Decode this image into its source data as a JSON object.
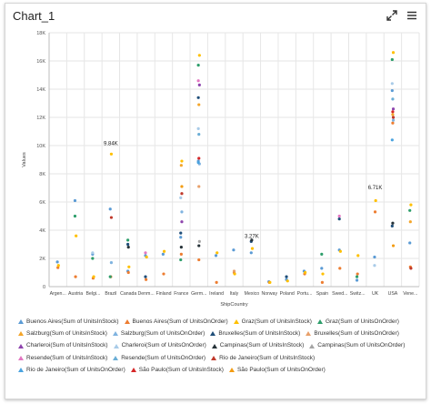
{
  "window": {
    "title": "Chart_1"
  },
  "toolbar": {
    "expand_icon": "expand-icon",
    "menu_icon": "hamburger-menu-icon"
  },
  "chart_data": {
    "type": "scatter",
    "xlabel": "ShipCountry",
    "ylabel": "Values",
    "ylim": [
      0,
      18000
    ],
    "y_ticks": [
      "0",
      "2K",
      "4K",
      "6K",
      "8K",
      "10K",
      "12K",
      "14K",
      "16K",
      "18K"
    ],
    "categories": [
      "Argen...",
      "Austria",
      "Belgi...",
      "Brazil",
      "Canada",
      "Denm...",
      "Finland",
      "France",
      "Germ...",
      "Ireland",
      "Italy",
      "Mexico",
      "Norway",
      "Poland",
      "Portu...",
      "Spain",
      "Swed...",
      "Switz...",
      "UK",
      "USA",
      "Vene..."
    ],
    "data_labels": [
      {
        "category": "Brazil",
        "value": 9840,
        "text": "9.84K"
      },
      {
        "category": "Mexico",
        "value": 3270,
        "text": "3.27K"
      },
      {
        "category": "UK",
        "value": 6710,
        "text": "6.71K"
      }
    ],
    "grid": true,
    "legend_position": "bottom",
    "series": [
      {
        "name": "Buenos Aires(Sum of UnitsInStock)",
        "color": "#5b9bd5",
        "values": [
          1750,
          6100,
          2300,
          5500,
          1100,
          2200,
          2300,
          3500,
          8900,
          2200,
          2600,
          2400,
          350,
          500,
          1100,
          1300,
          2600,
          450,
          2100,
          13900,
          3100
        ]
      },
      {
        "name": "Buenos Aires(Sum of UnitsOnOrder)",
        "color": "#ed7d31",
        "values": [
          1350,
          700,
          600,
          700,
          1000,
          500,
          900,
          2300,
          1900,
          300,
          1000,
          0,
          300,
          0,
          900,
          300,
          1300,
          900,
          5300,
          11600,
          1400
        ]
      },
      {
        "name": "Graz(Sum of UnitsInStock)",
        "color": "#ffc000",
        "values": [
          1500,
          3600,
          700,
          9400,
          1400,
          2100,
          2500,
          8900,
          16400,
          2400,
          900,
          2700,
          300,
          400,
          1000,
          900,
          2500,
          2200,
          6100,
          16600,
          5800
        ]
      },
      {
        "name": "Graz(Sum of UnitsOnOrder)",
        "color": "#2e9e6b",
        "values": [
          0,
          5000,
          2000,
          700,
          3300,
          0,
          0,
          1900,
          15700,
          0,
          0,
          0,
          0,
          0,
          0,
          2300,
          0,
          700,
          0,
          16100,
          5400
        ]
      },
      {
        "name": "Salzburg(Sum of UnitsInStock)",
        "color": "#f4a52a",
        "values": [
          0,
          0,
          0,
          0,
          0,
          0,
          0,
          8600,
          12900,
          0,
          0,
          0,
          0,
          0,
          0,
          0,
          0,
          0,
          0,
          12200,
          4600
        ]
      },
      {
        "name": "Salzburg(Sum of UnitsOnOrder)",
        "color": "#7fb3e0",
        "values": [
          0,
          0,
          0,
          1700,
          0,
          0,
          0,
          5300,
          8700,
          0,
          0,
          0,
          0,
          0,
          0,
          0,
          0,
          0,
          0,
          11800,
          0
        ]
      },
      {
        "name": "Bruxelles(Sum of UnitsInStock)",
        "color": "#1f4e79",
        "values": [
          0,
          0,
          0,
          0,
          3000,
          700,
          0,
          3800,
          13400,
          0,
          0,
          3200,
          0,
          700,
          0,
          0,
          4800,
          0,
          0,
          4300,
          0
        ]
      },
      {
        "name": "Bruxelles(Sum of UnitsOnOrder)",
        "color": "#e8a06a",
        "values": [
          0,
          0,
          0,
          0,
          0,
          0,
          0,
          0,
          7100,
          0,
          1100,
          0,
          0,
          0,
          0,
          0,
          0,
          0,
          0,
          0,
          0
        ]
      },
      {
        "name": "Charleroi(Sum of UnitsInStock)",
        "color": "#8e44ad",
        "values": [
          0,
          0,
          0,
          0,
          0,
          0,
          0,
          4600,
          14300,
          0,
          0,
          0,
          0,
          0,
          0,
          0,
          0,
          0,
          0,
          12600,
          0
        ]
      },
      {
        "name": "Charleroi(Sum of UnitsOnOrder)",
        "color": "#a9cbe8",
        "values": [
          0,
          0,
          2400,
          0,
          0,
          0,
          0,
          6300,
          11200,
          0,
          0,
          0,
          0,
          0,
          0,
          0,
          0,
          0,
          1500,
          14400,
          0
        ]
      },
      {
        "name": "Campinas(Sum of UnitsInStock)",
        "color": "#263238",
        "values": [
          0,
          0,
          0,
          0,
          2800,
          0,
          0,
          2800,
          2900,
          0,
          0,
          3300,
          0,
          0,
          0,
          0,
          0,
          0,
          0,
          4500,
          0
        ]
      },
      {
        "name": "Campinas(Sum of UnitsOnOrder)",
        "color": "#a5a5a5",
        "values": [
          0,
          0,
          0,
          0,
          0,
          0,
          0,
          0,
          3200,
          0,
          0,
          0,
          0,
          0,
          0,
          0,
          0,
          0,
          0,
          0,
          0
        ]
      },
      {
        "name": "Resende(Sum of UnitsInStock)",
        "color": "#e377c2",
        "values": [
          0,
          0,
          0,
          0,
          0,
          2400,
          0,
          0,
          14600,
          0,
          0,
          0,
          0,
          0,
          0,
          0,
          5000,
          0,
          0,
          0,
          0
        ]
      },
      {
        "name": "Resende(Sum of UnitsOnOrder)",
        "color": "#6baed6",
        "values": [
          0,
          0,
          0,
          0,
          0,
          0,
          0,
          0,
          10800,
          0,
          0,
          0,
          0,
          0,
          0,
          0,
          0,
          0,
          0,
          13300,
          0
        ]
      },
      {
        "name": "Rio de Janeiro(Sum of UnitsInStock)",
        "color": "#c0392b",
        "values": [
          0,
          0,
          0,
          4900,
          0,
          0,
          0,
          6600,
          0,
          0,
          0,
          0,
          0,
          0,
          0,
          0,
          0,
          0,
          0,
          12000,
          1300
        ]
      },
      {
        "name": "Rio de Janeiro(Sum of UnitsOnOrder)",
        "color": "#4aa3df",
        "values": [
          0,
          0,
          0,
          0,
          0,
          0,
          0,
          0,
          8800,
          0,
          0,
          0,
          0,
          0,
          0,
          0,
          0,
          0,
          0,
          10400,
          0
        ]
      },
      {
        "name": "São Paulo(Sum of UnitsInStock)",
        "color": "#d62728",
        "values": [
          0,
          0,
          0,
          0,
          0,
          0,
          0,
          0,
          9100,
          0,
          0,
          0,
          0,
          0,
          0,
          0,
          0,
          0,
          0,
          12400,
          0
        ]
      },
      {
        "name": "São Paulo(Sum of UnitsOnOrder)",
        "color": "#f39c12",
        "values": [
          0,
          0,
          0,
          0,
          0,
          0,
          0,
          7100,
          0,
          0,
          0,
          0,
          0,
          0,
          0,
          0,
          0,
          0,
          0,
          2900,
          0
        ]
      }
    ]
  }
}
